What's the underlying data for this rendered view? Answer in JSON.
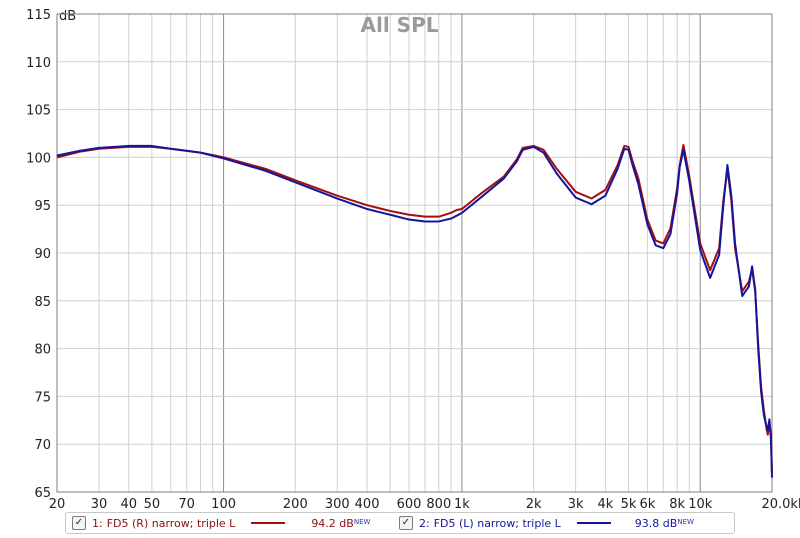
{
  "chart_data": {
    "type": "line",
    "title": "All SPL",
    "yunit": "dB",
    "xunit": "kHz",
    "x_scale": "log",
    "xlim": [
      20,
      20000
    ],
    "ylim": [
      65,
      115
    ],
    "grid": true,
    "y_ticks": [
      65,
      70,
      75,
      80,
      85,
      90,
      95,
      100,
      105,
      110,
      115
    ],
    "y_tick_labels": [
      "65",
      "70",
      "75",
      "80",
      "85",
      "90",
      "95",
      "100",
      "105",
      "110",
      "115"
    ],
    "x_ticks": [
      20,
      30,
      40,
      50,
      70,
      100,
      200,
      300,
      400,
      600,
      800,
      1000,
      2000,
      3000,
      4000,
      5000,
      6000,
      8000,
      10000,
      20000
    ],
    "x_tick_labels": [
      "20",
      "30",
      "40",
      "50",
      "70",
      "100",
      "200",
      "300",
      "400",
      "600",
      "800",
      "1k",
      "2k",
      "3k",
      "4k",
      "5k",
      "6k",
      "8k",
      "10k",
      "20.0kHz"
    ],
    "series": [
      {
        "name": "FD5 (R) narrow; triple L",
        "color": "#a01010",
        "x": [
          20,
          25,
          30,
          40,
          50,
          60,
          80,
          100,
          150,
          200,
          300,
          400,
          500,
          600,
          700,
          800,
          900,
          950,
          1000,
          1200,
          1500,
          1700,
          1800,
          2000,
          2200,
          2500,
          3000,
          3500,
          4000,
          4500,
          4800,
          5000,
          5200,
          5500,
          6000,
          6500,
          7000,
          7500,
          8000,
          8200,
          8500,
          9000,
          10000,
          11000,
          12000,
          12500,
          13000,
          13500,
          14000,
          15000,
          16000,
          16500,
          17000,
          17500,
          18000,
          18500,
          19000,
          19200,
          19500,
          19800,
          20000
        ],
        "y": [
          100.0,
          100.6,
          100.9,
          101.1,
          101.1,
          100.9,
          100.5,
          100.0,
          98.8,
          97.6,
          96.0,
          95.0,
          94.4,
          94.0,
          93.8,
          93.8,
          94.2,
          94.5,
          94.6,
          96.2,
          98.0,
          99.8,
          101.0,
          101.2,
          100.8,
          98.8,
          96.4,
          95.7,
          96.6,
          99.2,
          101.2,
          101.1,
          99.6,
          97.8,
          93.5,
          91.3,
          91.0,
          92.6,
          96.8,
          99.2,
          101.3,
          98.0,
          91.0,
          88.2,
          90.5,
          95.5,
          98.8,
          95.5,
          90.5,
          86.0,
          87.0,
          88.3,
          86.0,
          80.5,
          76.0,
          73.5,
          71.5,
          71.0,
          72.2,
          71.0,
          67.0
        ]
      },
      {
        "name": "FD5 (L) narrow; triple L",
        "color": "#14149c",
        "x": [
          20,
          25,
          30,
          40,
          50,
          60,
          80,
          100,
          150,
          200,
          300,
          400,
          500,
          600,
          700,
          800,
          900,
          950,
          1000,
          1200,
          1500,
          1700,
          1800,
          2000,
          2200,
          2500,
          3000,
          3500,
          4000,
          4500,
          4800,
          5000,
          5200,
          5500,
          6000,
          6500,
          7000,
          7500,
          8000,
          8200,
          8500,
          9000,
          10000,
          11000,
          12000,
          12500,
          13000,
          13500,
          14000,
          15000,
          16000,
          16500,
          17000,
          17500,
          18000,
          18500,
          19000,
          19200,
          19500,
          19800,
          20000
        ],
        "y": [
          100.2,
          100.7,
          101.0,
          101.2,
          101.2,
          100.9,
          100.5,
          99.9,
          98.6,
          97.4,
          95.7,
          94.6,
          94.0,
          93.5,
          93.3,
          93.3,
          93.6,
          93.9,
          94.2,
          95.8,
          97.8,
          99.6,
          100.8,
          101.1,
          100.5,
          98.3,
          95.8,
          95.1,
          96.0,
          98.8,
          100.9,
          100.8,
          99.2,
          97.2,
          93.0,
          90.8,
          90.5,
          92.0,
          96.3,
          99.0,
          100.8,
          97.5,
          90.3,
          87.4,
          89.8,
          95.0,
          99.2,
          96.0,
          91.0,
          85.5,
          86.5,
          88.6,
          86.2,
          80.0,
          75.5,
          73.0,
          71.8,
          71.5,
          72.6,
          70.5,
          66.5
        ]
      }
    ]
  },
  "legend": [
    {
      "index_label": "1:",
      "name": "FD5 (R) narrow; triple L",
      "value": "94.2 dB",
      "badge": "NEW",
      "color": "#a01010",
      "checked": true
    },
    {
      "index_label": "2:",
      "name": "FD5 (L) narrow; triple L",
      "value": "93.8 dB",
      "badge": "NEW",
      "color": "#14149c",
      "checked": true
    }
  ]
}
